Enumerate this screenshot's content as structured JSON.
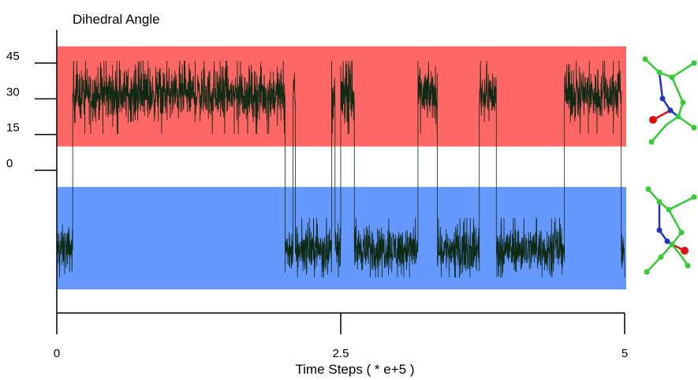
{
  "chart_data": {
    "type": "line",
    "title": "Dihedral Angle",
    "xlabel": "Time Steps ( * e+5 )",
    "ylabel": "",
    "xlim": [
      0,
      5
    ],
    "ylim": [
      -50,
      50
    ],
    "x_ticks": [
      {
        "value": 0,
        "label": "0"
      },
      {
        "value": 2.5,
        "label": "2.5"
      },
      {
        "value": 5,
        "label": "5"
      }
    ],
    "y_ticks": [
      {
        "value": 45,
        "label": "45"
      },
      {
        "value": 30,
        "label": "30"
      },
      {
        "value": 15,
        "label": "15"
      },
      {
        "value": 0,
        "label": "0"
      }
    ],
    "bands": [
      {
        "name": "upper-state",
        "y_from": 10,
        "y_to": 52,
        "color": "#ff6666"
      },
      {
        "name": "lower-state",
        "y_from": -50,
        "y_to": -7,
        "color": "#6699ff"
      }
    ],
    "series_color": "#0e2a14",
    "states": {
      "upper": {
        "center": 32,
        "spread": 16,
        "min": 12,
        "max": 46
      },
      "lower": {
        "center": -33,
        "spread": 14,
        "min": -45,
        "max": -20
      }
    },
    "segments": [
      {
        "x_start": 0.0,
        "x_end": 0.14,
        "state": "lower"
      },
      {
        "x_start": 0.14,
        "x_end": 2.01,
        "state": "upper"
      },
      {
        "x_start": 2.01,
        "x_end": 2.08,
        "state": "lower"
      },
      {
        "x_start": 2.08,
        "x_end": 2.1,
        "state": "upper"
      },
      {
        "x_start": 2.1,
        "x_end": 2.42,
        "state": "lower"
      },
      {
        "x_start": 2.42,
        "x_end": 2.45,
        "state": "upper"
      },
      {
        "x_start": 2.45,
        "x_end": 2.5,
        "state": "lower"
      },
      {
        "x_start": 2.5,
        "x_end": 2.62,
        "state": "upper"
      },
      {
        "x_start": 2.62,
        "x_end": 2.72,
        "state": "lower"
      },
      {
        "x_start": 2.72,
        "x_end": 3.18,
        "state": "lower"
      },
      {
        "x_start": 3.18,
        "x_end": 3.35,
        "state": "upper"
      },
      {
        "x_start": 3.35,
        "x_end": 3.72,
        "state": "lower"
      },
      {
        "x_start": 3.72,
        "x_end": 3.87,
        "state": "upper"
      },
      {
        "x_start": 3.87,
        "x_end": 4.47,
        "state": "lower"
      },
      {
        "x_start": 4.47,
        "x_end": 4.97,
        "state": "upper"
      },
      {
        "x_start": 4.97,
        "x_end": 5.0,
        "state": "lower"
      }
    ]
  },
  "structures": {
    "colors": {
      "carbon": "#33cc33",
      "nitrogen": "#2233cc",
      "oxygen": "#dd1111"
    }
  }
}
